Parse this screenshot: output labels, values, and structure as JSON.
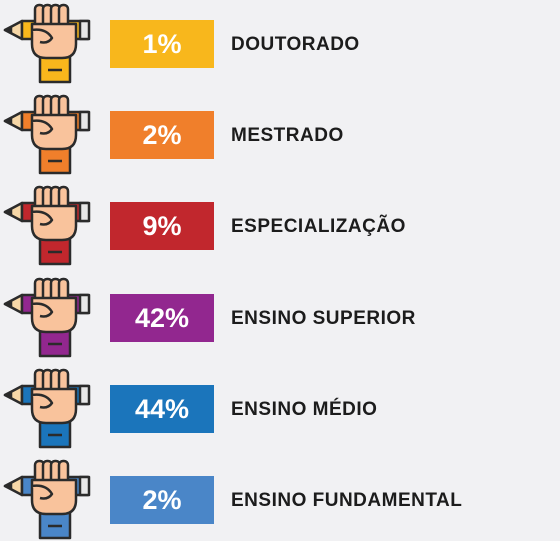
{
  "items": [
    {
      "percent": "1%",
      "label": "DOUTORADO",
      "color": "#f8b71c"
    },
    {
      "percent": "2%",
      "label": "MESTRADO",
      "color": "#f07f2b"
    },
    {
      "percent": "9%",
      "label": "ESPECIALIZAÇÃO",
      "color": "#c1272d"
    },
    {
      "percent": "42%",
      "label": "ENSINO SUPERIOR",
      "color": "#92278f"
    },
    {
      "percent": "44%",
      "label": "ENSINO MÉDIO",
      "color": "#1b75bb"
    },
    {
      "percent": "2%",
      "label": "ENSINO FUNDAMENTAL",
      "color": "#4a86c8"
    }
  ]
}
